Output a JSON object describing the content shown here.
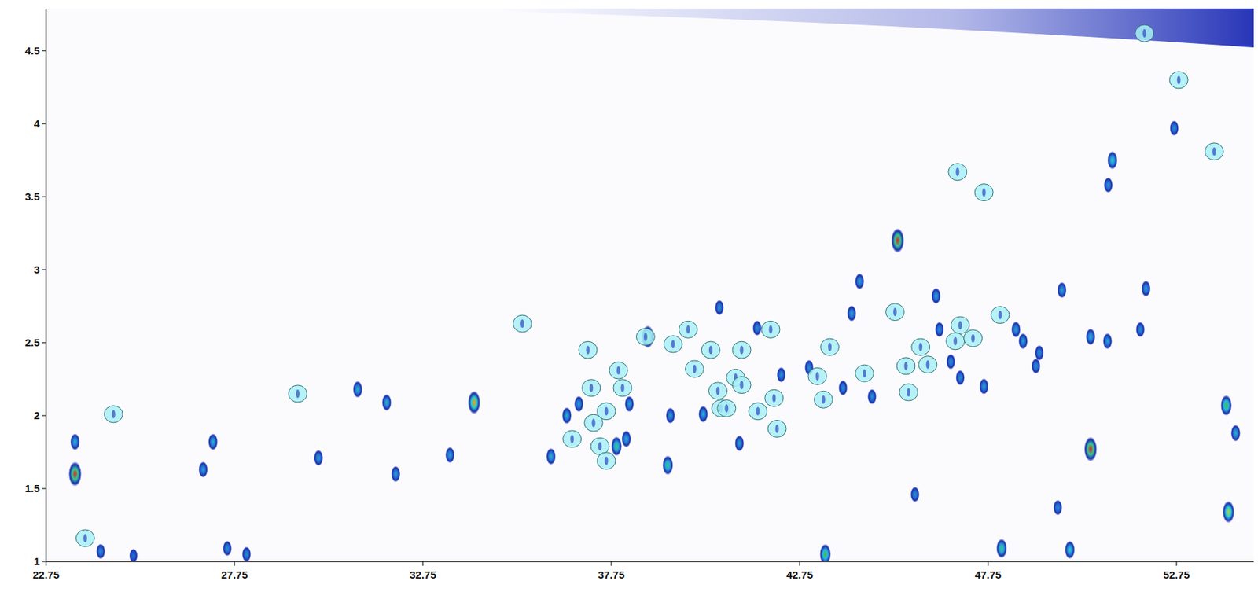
{
  "chart_data": {
    "type": "scatter",
    "xlim": [
      22.75,
      54.8
    ],
    "ylim": [
      1,
      4.79
    ],
    "xticks": [
      22.75,
      27.75,
      32.75,
      37.75,
      42.75,
      47.75,
      52.75
    ],
    "yticks": [
      1,
      1.5,
      2,
      2.5,
      3,
      3.5,
      4,
      4.5
    ],
    "series": [
      {
        "color": "#1a2fb0",
        "marker": "blob",
        "x": [
          23.52,
          23.52,
          24.2,
          25.07,
          26.92,
          27.18,
          27.56,
          28.07,
          29.98,
          31.02,
          31.79,
          32.03,
          33.47,
          34.11,
          36.15,
          36.57,
          36.89,
          37.89,
          38.15,
          38.23,
          38.72,
          39.25,
          39.32,
          40.19,
          40.62,
          41.15,
          41.62,
          42.26,
          43.0,
          43.43,
          43.9,
          44.34,
          44.13,
          44.67,
          45.35,
          45.81,
          46.37,
          46.46,
          46.76,
          47.01,
          47.64,
          48.11,
          48.49,
          48.68,
          49.11,
          49.02,
          49.71,
          49.6,
          49.92,
          50.47,
          50.47,
          50.92,
          51.05,
          50.94,
          51.94,
          51.79,
          52.69,
          54.07,
          54.13,
          54.32
        ],
        "values": [
          1.6,
          1.82,
          1.07,
          1.04,
          1.63,
          1.82,
          1.09,
          1.05,
          1.71,
          2.18,
          2.09,
          1.6,
          1.73,
          2.09,
          1.72,
          2.0,
          2.08,
          1.79,
          1.84,
          2.08,
          2.54,
          1.66,
          2.0,
          2.01,
          2.74,
          1.81,
          2.6,
          2.28,
          2.33,
          1.05,
          2.19,
          2.92,
          2.7,
          2.13,
          3.2,
          1.46,
          2.82,
          2.59,
          2.37,
          2.26,
          2.2,
          1.09,
          2.59,
          2.51,
          2.43,
          2.34,
          2.86,
          1.37,
          1.08,
          1.77,
          2.54,
          2.51,
          3.75,
          3.58,
          2.87,
          2.59,
          3.97,
          2.07,
          1.34,
          1.88
        ],
        "intensity": [
          1.0,
          0.4,
          0.3,
          0.2,
          0.35,
          0.4,
          0.3,
          0.3,
          0.35,
          0.4,
          0.4,
          0.35,
          0.35,
          0.9,
          0.4,
          0.4,
          0.35,
          0.6,
          0.4,
          0.35,
          0.85,
          0.6,
          0.35,
          0.4,
          0.3,
          0.35,
          0.3,
          0.3,
          0.3,
          0.7,
          0.3,
          0.35,
          0.35,
          0.3,
          1.0,
          0.3,
          0.35,
          0.3,
          0.3,
          0.3,
          0.35,
          0.6,
          0.35,
          0.35,
          0.3,
          0.3,
          0.35,
          0.3,
          0.5,
          1.0,
          0.4,
          0.35,
          0.5,
          0.3,
          0.35,
          0.3,
          0.3,
          0.7,
          0.8,
          0.4
        ]
      },
      {
        "color": "#a8eef5",
        "marker": "circle",
        "x": [
          24.54,
          23.79,
          29.43,
          35.39,
          37.13,
          37.22,
          36.71,
          37.28,
          37.62,
          37.94,
          38.05,
          37.45,
          37.62,
          38.66,
          39.39,
          39.79,
          39.96,
          40.39,
          40.58,
          40.66,
          40.81,
          41.05,
          41.21,
          41.21,
          41.64,
          41.98,
          42.07,
          42.15,
          43.22,
          43.38,
          43.55,
          44.47,
          45.28,
          45.57,
          45.64,
          45.96,
          46.15,
          46.94,
          47.01,
          46.88,
          47.35,
          47.64,
          48.07,
          51.9,
          52.81,
          53.75
        ],
        "values": [
          2.01,
          1.16,
          2.15,
          2.63,
          2.45,
          2.19,
          1.84,
          1.95,
          2.03,
          2.31,
          2.19,
          1.79,
          1.69,
          2.54,
          2.49,
          2.59,
          2.32,
          2.45,
          2.17,
          2.05,
          2.05,
          2.26,
          2.21,
          2.45,
          2.03,
          2.59,
          2.12,
          1.91,
          2.27,
          2.11,
          2.47,
          2.29,
          2.71,
          2.34,
          2.16,
          2.47,
          2.35,
          3.67,
          2.62,
          2.51,
          2.53,
          3.53,
          2.69,
          4.62,
          4.3,
          3.81
        ]
      }
    ]
  }
}
